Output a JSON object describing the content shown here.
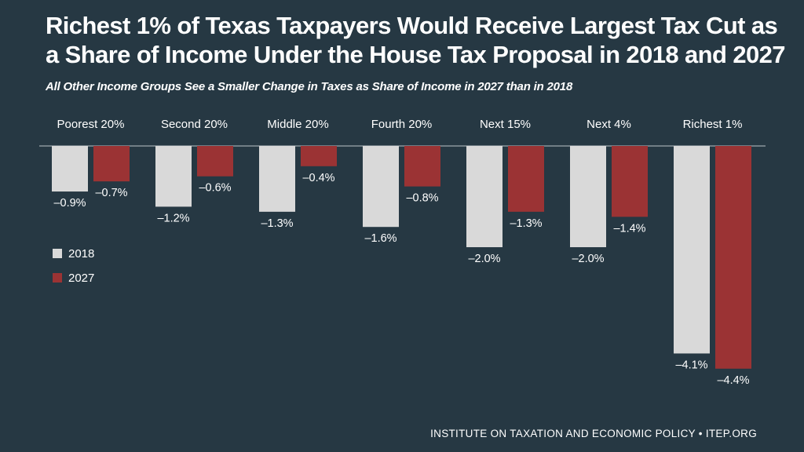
{
  "header": {
    "title": "Richest 1% of Texas Taxpayers Would Receive Largest Tax Cut as a Share of Income Under the House Tax Proposal in 2018 and 2027",
    "subtitle": "All Other Income Groups See a Smaller Change in Taxes as Share of Income in 2027 than in 2018"
  },
  "footer": {
    "source": "INSTITUTE ON TAXATION AND ECONOMIC POLICY • ITEP.ORG"
  },
  "colors": {
    "background": "#263843",
    "series_2018": "#d9d9d9",
    "series_2027": "#9b3334",
    "baseline": "#8a959c"
  },
  "chart_data": {
    "type": "bar",
    "title": "Richest 1% of Texas Taxpayers Would Receive Largest Tax Cut as a Share of Income Under the House Tax Proposal in 2018 and 2027",
    "subtitle": "All Other Income Groups See a Smaller Change in Taxes as Share of Income in 2027 than in 2018",
    "xlabel": "",
    "ylabel": "",
    "ylim": [
      -4.4,
      0
    ],
    "grid": false,
    "legend_position": "left",
    "categories": [
      "Poorest 20%",
      "Second 20%",
      "Middle 20%",
      "Fourth 20%",
      "Next 15%",
      "Next 4%",
      "Richest 1%"
    ],
    "series": [
      {
        "name": "2018",
        "values": [
          -0.9,
          -1.2,
          -1.3,
          -1.6,
          -2.0,
          -2.0,
          -4.1
        ],
        "labels": [
          "–0.9%",
          "–1.2%",
          "–1.3%",
          "–1.6%",
          "–2.0%",
          "–2.0%",
          "–4.1%"
        ]
      },
      {
        "name": "2027",
        "values": [
          -0.7,
          -0.6,
          -0.4,
          -0.8,
          -1.3,
          -1.4,
          -4.4
        ],
        "labels": [
          "–0.7%",
          "–0.6%",
          "–0.4%",
          "–0.8%",
          "–1.3%",
          "–1.4%",
          "–4.4%"
        ]
      }
    ]
  }
}
